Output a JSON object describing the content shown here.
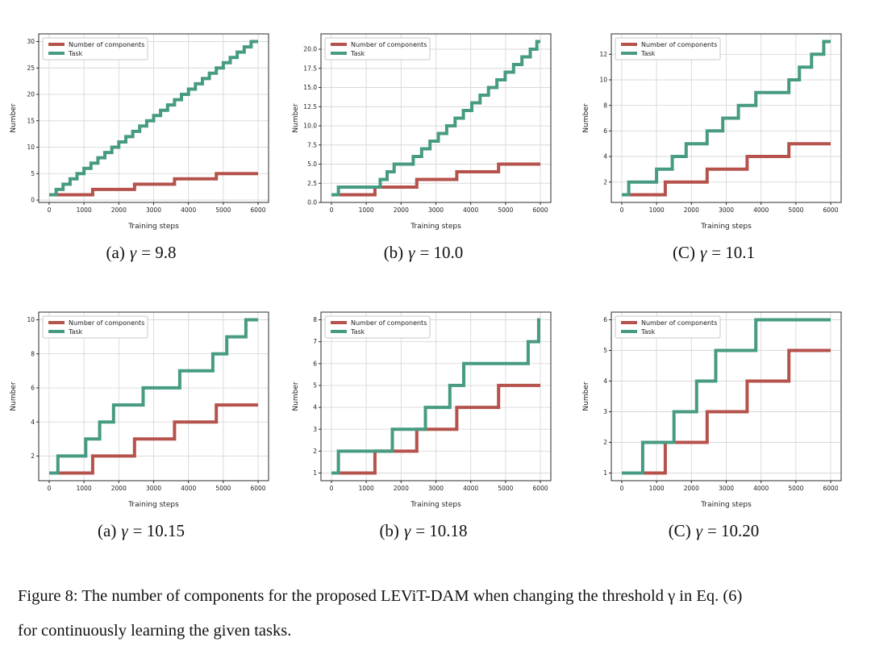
{
  "figure": {
    "caption_line1": "Figure 8: The number of components for the proposed LEViT-DAM when changing the threshold γ in Eq. (6)",
    "caption_line2": "for continuously learning the given tasks."
  },
  "colors": {
    "components": "#b5524c",
    "task": "#469b82",
    "grid": "#d8d8d8",
    "spine": "#2b2b2b",
    "tick_text": "#222222",
    "legend_border": "#c8c8c8",
    "background": "#ffffff"
  },
  "legend": {
    "components_label": "Number of components",
    "task_label": "Task",
    "position": "upper-left"
  },
  "axis": {
    "xlabel": "Training steps",
    "ylabel": "Number"
  },
  "chart_data": [
    {
      "type": "line",
      "subtype": "step",
      "caption": {
        "prefix": "(a)",
        "symbol": "γ",
        "rest": "= 9.8"
      },
      "xlabel": "Training steps",
      "ylabel": "Number",
      "grid": true,
      "legend_position": "upper-left",
      "xlim": [
        -300,
        6300
      ],
      "ylim": [
        -0.45,
        31.45
      ],
      "x_ticks": [
        0,
        1000,
        2000,
        3000,
        4000,
        5000,
        6000
      ],
      "x_tick_labels": [
        "0",
        "1000",
        "2000",
        "3000",
        "4000",
        "5000",
        "6000"
      ],
      "y_ticks": [
        0,
        5,
        10,
        15,
        20,
        25,
        30
      ],
      "y_tick_labels": [
        "0",
        "5",
        "10",
        "15",
        "20",
        "25",
        "30"
      ],
      "series": [
        {
          "name": "Number of components",
          "color": "#b5524c",
          "start_y": 1,
          "end_x": 6000,
          "step_xs": [
            1250,
            2450,
            3600,
            4800
          ]
        },
        {
          "name": "Task",
          "color": "#469b82",
          "start_y": 1,
          "end_x": 6000,
          "step_xs": [
            200,
            400,
            600,
            800,
            1000,
            1200,
            1400,
            1600,
            1800,
            2000,
            2200,
            2400,
            2600,
            2800,
            3000,
            3200,
            3400,
            3600,
            3800,
            4000,
            4200,
            4400,
            4600,
            4800,
            5000,
            5200,
            5400,
            5600,
            5800
          ]
        }
      ]
    },
    {
      "type": "line",
      "subtype": "step",
      "caption": {
        "prefix": "(b)",
        "symbol": "γ",
        "rest": "= 10.0"
      },
      "xlabel": "Training steps",
      "ylabel": "Number",
      "grid": true,
      "legend_position": "upper-left",
      "xlim": [
        -300,
        6300
      ],
      "ylim": [
        0,
        22
      ],
      "x_ticks": [
        0,
        1000,
        2000,
        3000,
        4000,
        5000,
        6000
      ],
      "x_tick_labels": [
        "0",
        "1000",
        "2000",
        "3000",
        "4000",
        "5000",
        "6000"
      ],
      "y_ticks": [
        0,
        2.5,
        5,
        7.5,
        10,
        12.5,
        15,
        17.5,
        20
      ],
      "y_tick_labels": [
        "0.0",
        "2.5",
        "5.0",
        "7.5",
        "10.0",
        "12.5",
        "15.0",
        "17.5",
        "20.0"
      ],
      "series": [
        {
          "name": "Number of components",
          "color": "#b5524c",
          "start_y": 1,
          "end_x": 6000,
          "step_xs": [
            1250,
            2450,
            3600,
            4800
          ]
        },
        {
          "name": "Task",
          "color": "#469b82",
          "start_y": 1,
          "end_x": 6000,
          "step_xs": [
            200,
            1400,
            1600,
            1800,
            2350,
            2590,
            2830,
            3070,
            3310,
            3550,
            3790,
            4030,
            4270,
            4510,
            4750,
            4990,
            5230,
            5470,
            5710,
            5900
          ]
        }
      ]
    },
    {
      "type": "line",
      "subtype": "step",
      "caption": {
        "prefix": "(C)",
        "symbol": "γ",
        "rest": "= 10.1"
      },
      "xlabel": "Training steps",
      "ylabel": "Number",
      "grid": true,
      "legend_position": "upper-left",
      "xlim": [
        -300,
        6300
      ],
      "ylim": [
        0.4,
        13.6
      ],
      "x_ticks": [
        0,
        1000,
        2000,
        3000,
        4000,
        5000,
        6000
      ],
      "x_tick_labels": [
        "0",
        "1000",
        "2000",
        "3000",
        "4000",
        "5000",
        "6000"
      ],
      "y_ticks": [
        2,
        4,
        6,
        8,
        10,
        12
      ],
      "y_tick_labels": [
        "2",
        "4",
        "6",
        "8",
        "10",
        "12"
      ],
      "series": [
        {
          "name": "Number of components",
          "color": "#b5524c",
          "start_y": 1,
          "end_x": 6000,
          "step_xs": [
            1250,
            2450,
            3600,
            4800
          ]
        },
        {
          "name": "Task",
          "color": "#469b82",
          "start_y": 1,
          "end_x": 6000,
          "step_xs": [
            200,
            1000,
            1450,
            1850,
            2450,
            2900,
            3350,
            3850,
            4800,
            5100,
            5450,
            5800
          ]
        }
      ]
    },
    {
      "type": "line",
      "subtype": "step",
      "caption": {
        "prefix": "(a)",
        "symbol": "γ",
        "rest": "= 10.15"
      },
      "xlabel": "Training steps",
      "ylabel": "Number",
      "grid": true,
      "legend_position": "upper-left",
      "xlim": [
        -300,
        6300
      ],
      "ylim": [
        0.55,
        10.45
      ],
      "x_ticks": [
        0,
        1000,
        2000,
        3000,
        4000,
        5000,
        6000
      ],
      "x_tick_labels": [
        "0",
        "1000",
        "2000",
        "3000",
        "4000",
        "5000",
        "6000"
      ],
      "y_ticks": [
        2,
        4,
        6,
        8,
        10
      ],
      "y_tick_labels": [
        "2",
        "4",
        "6",
        "8",
        "10"
      ],
      "series": [
        {
          "name": "Number of components",
          "color": "#b5524c",
          "start_y": 1,
          "end_x": 6000,
          "step_xs": [
            1250,
            2450,
            3600,
            4800
          ]
        },
        {
          "name": "Task",
          "color": "#469b82",
          "start_y": 1,
          "end_x": 6000,
          "step_xs": [
            250,
            1050,
            1450,
            1850,
            2700,
            3750,
            4700,
            5100,
            5650
          ]
        }
      ]
    },
    {
      "type": "line",
      "subtype": "step",
      "caption": {
        "prefix": "(b)",
        "symbol": "γ",
        "rest": "= 10.18"
      },
      "xlabel": "Training steps",
      "ylabel": "Number",
      "grid": true,
      "legend_position": "upper-left",
      "xlim": [
        -300,
        6300
      ],
      "ylim": [
        0.65,
        8.35
      ],
      "x_ticks": [
        0,
        1000,
        2000,
        3000,
        4000,
        5000,
        6000
      ],
      "x_tick_labels": [
        "0",
        "1000",
        "2000",
        "3000",
        "4000",
        "5000",
        "6000"
      ],
      "y_ticks": [
        1,
        2,
        3,
        4,
        5,
        6,
        7,
        8
      ],
      "y_tick_labels": [
        "1",
        "2",
        "3",
        "4",
        "5",
        "6",
        "7",
        "8"
      ],
      "series": [
        {
          "name": "Number of components",
          "color": "#b5524c",
          "start_y": 1,
          "end_x": 6000,
          "step_xs": [
            1250,
            2450,
            3600,
            4800
          ]
        },
        {
          "name": "Task",
          "color": "#469b82",
          "start_y": 1,
          "end_x": 6000,
          "step_xs": [
            200,
            1750,
            2700,
            3400,
            3800,
            5650,
            5950
          ]
        }
      ]
    },
    {
      "type": "line",
      "subtype": "step",
      "caption": {
        "prefix": "(C)",
        "symbol": "γ",
        "rest": "= 10.20"
      },
      "xlabel": "Training steps",
      "ylabel": "Number",
      "grid": true,
      "legend_position": "upper-left",
      "xlim": [
        -300,
        6300
      ],
      "ylim": [
        0.75,
        6.25
      ],
      "x_ticks": [
        0,
        1000,
        2000,
        3000,
        4000,
        5000,
        6000
      ],
      "x_tick_labels": [
        "0",
        "1000",
        "2000",
        "3000",
        "4000",
        "5000",
        "6000"
      ],
      "y_ticks": [
        1,
        2,
        3,
        4,
        5,
        6
      ],
      "y_tick_labels": [
        "1",
        "2",
        "3",
        "4",
        "5",
        "6"
      ],
      "series": [
        {
          "name": "Number of components",
          "color": "#b5524c",
          "start_y": 1,
          "end_x": 6000,
          "step_xs": [
            1250,
            2450,
            3600,
            4800
          ]
        },
        {
          "name": "Task",
          "color": "#469b82",
          "start_y": 1,
          "end_x": 6000,
          "step_xs": [
            600,
            1500,
            2150,
            2700,
            3850
          ]
        }
      ]
    }
  ]
}
